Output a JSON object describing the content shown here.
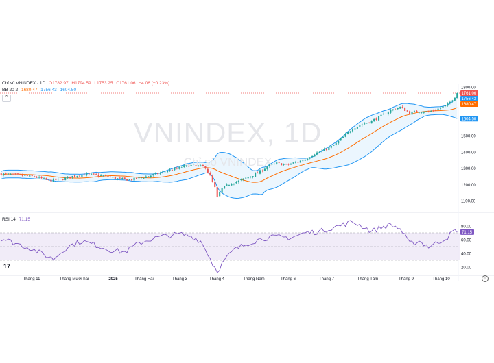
{
  "legend": {
    "title": "Chỉ số VNINDEX · 1D",
    "open": "O1782.97",
    "high": "H1794.59",
    "low": "L1753.25",
    "close": "C1761.06",
    "change": "−4.06 (−0.23%)",
    "bb_label": "BB 20 2",
    "bb_basis": "1680.47",
    "bb_upper": "1756.43",
    "bb_lower": "1604.50"
  },
  "watermark": {
    "main": "VNINDEX, 1D",
    "sub": "Chỉ số VNINDEX"
  },
  "rsi_legend": {
    "label": "RSI 14",
    "value": "71.15"
  },
  "tv_logo": "17",
  "colors": {
    "up": "#26a69a",
    "down": "#ef5350",
    "bb_band": "#2196f3",
    "bb_fill": "#e3f2fd",
    "bb_basis": "#ff6d00",
    "rsi": "#7e57c2",
    "rsi_fill": "#ede7f6",
    "last_price": "#ef5350"
  },
  "chart_data": [
    {
      "type": "candlestick",
      "title": "Chỉ số VNINDEX · 1D",
      "ylim": [
        1050,
        1820
      ],
      "yticks": [
        1100.0,
        1200.0,
        1300.0,
        1400.0,
        1500.0,
        1600.0,
        1700.0,
        1800.0
      ],
      "price_labels": [
        {
          "name": "last",
          "value": 1761.06,
          "text": "1761.06"
        },
        {
          "name": "bb-upper",
          "value": 1756.43,
          "text": "1756.43"
        },
        {
          "name": "bb-basis",
          "value": 1680.47,
          "text": "1680.47"
        },
        {
          "name": "bb-lower",
          "value": 1604.5,
          "text": "1604.50"
        }
      ],
      "x_labels": [
        "Tháng 11",
        "Tháng Mười hai",
        "2025",
        "Tháng Hai",
        "Tháng 3",
        "Tháng 4",
        "Tháng Năm",
        "Tháng 6",
        "Tháng 7",
        "Tháng Tám",
        "Tháng 9",
        "Tháng 10"
      ],
      "close_anchors": [
        [
          0,
          1265
        ],
        [
          8,
          1255
        ],
        [
          14,
          1248
        ],
        [
          20,
          1225
        ],
        [
          25,
          1230
        ],
        [
          30,
          1250
        ],
        [
          35,
          1262
        ],
        [
          40,
          1258
        ],
        [
          45,
          1248
        ],
        [
          50,
          1232
        ],
        [
          55,
          1230
        ],
        [
          60,
          1245
        ],
        [
          65,
          1262
        ],
        [
          70,
          1285
        ],
        [
          75,
          1300
        ],
        [
          78,
          1318
        ],
        [
          82,
          1315
        ],
        [
          86,
          1305
        ],
        [
          88,
          1250
        ],
        [
          90,
          1180
        ],
        [
          91,
          1120
        ],
        [
          93,
          1175
        ],
        [
          97,
          1210
        ],
        [
          100,
          1220
        ],
        [
          104,
          1245
        ],
        [
          108,
          1270
        ],
        [
          112,
          1310
        ],
        [
          116,
          1330
        ],
        [
          120,
          1320
        ],
        [
          124,
          1335
        ],
        [
          128,
          1355
        ],
        [
          132,
          1390
        ],
        [
          136,
          1410
        ],
        [
          140,
          1440
        ],
        [
          144,
          1490
        ],
        [
          148,
          1545
        ],
        [
          152,
          1570
        ],
        [
          156,
          1590
        ],
        [
          160,
          1620
        ],
        [
          164,
          1655
        ],
        [
          168,
          1675
        ],
        [
          172,
          1640
        ],
        [
          176,
          1650
        ],
        [
          180,
          1645
        ],
        [
          184,
          1665
        ],
        [
          188,
          1690
        ],
        [
          191,
          1740
        ],
        [
          192,
          1761
        ]
      ],
      "bollinger": {
        "period": 20,
        "mult": 2
      }
    },
    {
      "type": "line",
      "series": [
        {
          "name": "RSI 14"
        }
      ],
      "ylim": [
        10,
        90
      ],
      "yticks": [
        20.0,
        40.0,
        60.0,
        80.0
      ],
      "bands": [
        70,
        50,
        30
      ],
      "last_value": 71.15,
      "anchors": [
        [
          0,
          62
        ],
        [
          6,
          55
        ],
        [
          12,
          48
        ],
        [
          18,
          38
        ],
        [
          22,
          32
        ],
        [
          28,
          50
        ],
        [
          34,
          58
        ],
        [
          40,
          52
        ],
        [
          46,
          45
        ],
        [
          52,
          42
        ],
        [
          58,
          55
        ],
        [
          64,
          62
        ],
        [
          70,
          66
        ],
        [
          76,
          68
        ],
        [
          80,
          65
        ],
        [
          84,
          58
        ],
        [
          87,
          40
        ],
        [
          89,
          25
        ],
        [
          91,
          14
        ],
        [
          94,
          30
        ],
        [
          98,
          45
        ],
        [
          104,
          55
        ],
        [
          110,
          62
        ],
        [
          116,
          64
        ],
        [
          122,
          63
        ],
        [
          128,
          70
        ],
        [
          134,
          72
        ],
        [
          140,
          78
        ],
        [
          144,
          82
        ],
        [
          148,
          86
        ],
        [
          152,
          80
        ],
        [
          156,
          72
        ],
        [
          160,
          78
        ],
        [
          164,
          82
        ],
        [
          168,
          76
        ],
        [
          172,
          54
        ],
        [
          176,
          58
        ],
        [
          180,
          50
        ],
        [
          184,
          56
        ],
        [
          188,
          64
        ],
        [
          191,
          74
        ],
        [
          192,
          71
        ]
      ]
    }
  ]
}
